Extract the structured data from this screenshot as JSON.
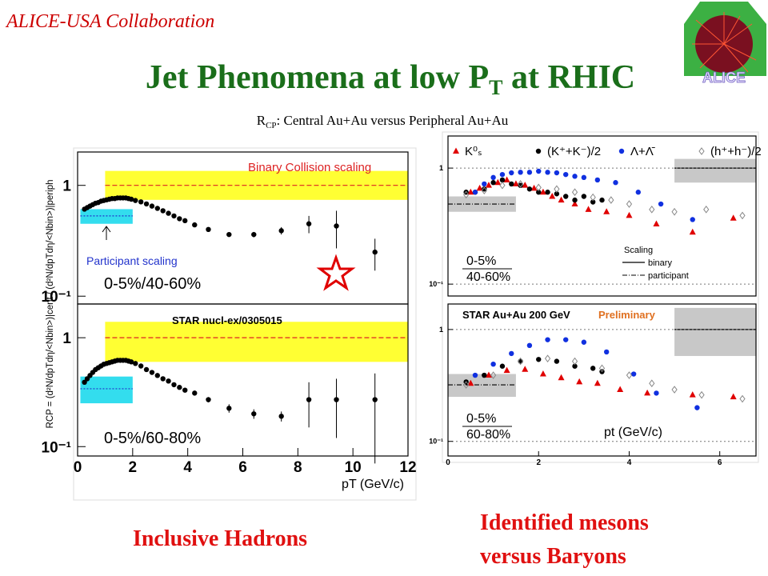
{
  "header": {
    "collab": "ALICE-USA Collaboration",
    "title_main": "Jet Phenomena at low P",
    "title_sub": "T",
    "title_tail": " at RHIC",
    "subtitle_main": "R",
    "subtitle_sub": "CP",
    "subtitle_tail": ": Central Au+Au versus Peripheral Au+Au",
    "logo": "ALICE"
  },
  "captions": {
    "left": "Inclusive Hadrons",
    "right_1": "Identified mesons",
    "right_2": "versus Baryons"
  },
  "chart_data": [
    {
      "type": "scatter",
      "log_y": true,
      "xlim": [
        0,
        12
      ],
      "ylim": [
        0.085,
        2
      ],
      "yticks": [
        1,
        {
          "value": 0.1,
          "label": "10⁻¹"
        }
      ],
      "series": [
        {
          "color": "#000000",
          "marker": "circle",
          "x": [
            0.25,
            0.35,
            0.45,
            0.55,
            0.65,
            0.75,
            0.85,
            0.95,
            1.05,
            1.15,
            1.25,
            1.35,
            1.45,
            1.55,
            1.65,
            1.75,
            1.85,
            1.95,
            2.1,
            2.3,
            2.5,
            2.7,
            2.9,
            3.1,
            3.3,
            3.5,
            3.7,
            3.9,
            4.25,
            4.75,
            5.5,
            6.4,
            7.4,
            8.4,
            9.4,
            10.8
          ],
          "values": [
            0.61,
            0.63,
            0.65,
            0.67,
            0.69,
            0.7,
            0.72,
            0.73,
            0.74,
            0.75,
            0.76,
            0.76,
            0.77,
            0.77,
            0.77,
            0.77,
            0.76,
            0.75,
            0.73,
            0.71,
            0.68,
            0.65,
            0.62,
            0.59,
            0.56,
            0.53,
            0.5,
            0.48,
            0.44,
            0.4,
            0.36,
            0.36,
            0.39,
            0.45,
            0.43,
            0.25
          ],
          "errors": [
            null,
            null,
            null,
            null,
            null,
            null,
            null,
            null,
            null,
            null,
            null,
            null,
            null,
            null,
            null,
            null,
            null,
            null,
            null,
            null,
            null,
            null,
            null,
            null,
            null,
            null,
            null,
            null,
            0.01,
            0.01,
            0.015,
            0.02,
            0.03,
            0.08,
            0.16,
            0.08
          ]
        }
      ],
      "bands": [
        {
          "x": [
            1,
            12
          ],
          "y": [
            0.74,
            1.35
          ],
          "color": "#ffff33",
          "line": 1,
          "line_color": "#dd2222",
          "line_style": "dashed"
        },
        {
          "x": [
            0.1,
            2
          ],
          "y": [
            0.45,
            0.61
          ],
          "color": "#33ddee",
          "line": 0.53,
          "line_color": "#2233cc",
          "line_style": "dotted"
        }
      ],
      "annotations": [
        "Binary Collision scaling",
        "Participant scaling",
        "0-5%/40-60%",
        "STAR"
      ]
    },
    {
      "type": "scatter",
      "log_y": true,
      "xlim": [
        0,
        12
      ],
      "ylim": [
        0.082,
        2.04
      ],
      "xticks": [
        0,
        2,
        4,
        6,
        8,
        10,
        12
      ],
      "xlabel": "pT (GeV/c)",
      "ylabel": "RCP = (d²N/dpTdη/<Nbin>)|cent / (d²N/dpTdη/<Nbin>)|periph",
      "yticks": [
        1,
        {
          "value": 0.1,
          "label": "10⁻¹"
        }
      ],
      "series": [
        {
          "color": "#000000",
          "marker": "circle",
          "x": [
            0.25,
            0.35,
            0.45,
            0.55,
            0.65,
            0.75,
            0.85,
            0.95,
            1.05,
            1.15,
            1.25,
            1.35,
            1.45,
            1.55,
            1.65,
            1.75,
            1.85,
            1.95,
            2.1,
            2.3,
            2.5,
            2.7,
            2.9,
            3.1,
            3.3,
            3.5,
            3.7,
            3.9,
            4.25,
            4.75,
            5.5,
            6.4,
            7.4,
            8.4,
            9.4,
            10.8
          ],
          "values": [
            0.39,
            0.42,
            0.45,
            0.48,
            0.51,
            0.53,
            0.55,
            0.57,
            0.58,
            0.59,
            0.6,
            0.61,
            0.62,
            0.62,
            0.62,
            0.62,
            0.61,
            0.6,
            0.58,
            0.55,
            0.51,
            0.48,
            0.45,
            0.42,
            0.4,
            0.37,
            0.35,
            0.33,
            0.31,
            0.27,
            0.225,
            0.2,
            0.19,
            0.27,
            0.27,
            0.27
          ],
          "errors": [
            null,
            null,
            null,
            null,
            null,
            null,
            null,
            null,
            null,
            null,
            null,
            null,
            null,
            null,
            null,
            null,
            null,
            null,
            null,
            null,
            null,
            null,
            null,
            null,
            null,
            null,
            null,
            null,
            0.01,
            0.015,
            0.02,
            0.02,
            0.02,
            0.12,
            0.15,
            0.2
          ]
        }
      ],
      "bands": [
        {
          "x": [
            1,
            12
          ],
          "y": [
            0.6,
            1.4
          ],
          "color": "#ffff33",
          "line": 1,
          "line_color": "#dd2222",
          "line_style": "dashed"
        },
        {
          "x": [
            0.1,
            2
          ],
          "y": [
            0.25,
            0.44
          ],
          "color": "#33ddee",
          "line": 0.34,
          "line_color": "#2233cc",
          "line_style": "dotted"
        }
      ],
      "annotations": [
        "STAR nucl-ex/0305015",
        "0-5%/60-80%"
      ]
    },
    {
      "type": "scatter",
      "log_y": true,
      "xlim": [
        0,
        6.8
      ],
      "ylim": [
        0.079,
        1.89
      ],
      "yticks": [
        1,
        {
          "value": 0.1,
          "label": "10⁻¹"
        }
      ],
      "ref_lines": [
        1,
        0.1
      ],
      "series": [
        {
          "name": "K⁰ₛ",
          "color": "#e00000",
          "marker": "triangle",
          "x": [
            0.5,
            0.7,
            0.9,
            1.1,
            1.3,
            1.5,
            1.7,
            1.9,
            2.1,
            2.3,
            2.5,
            2.8,
            3.1,
            3.5,
            4.0,
            4.6,
            5.4,
            6.3
          ],
          "values": [
            0.62,
            0.67,
            0.71,
            0.75,
            0.79,
            0.73,
            0.71,
            0.67,
            0.62,
            0.57,
            0.53,
            0.49,
            0.44,
            0.42,
            0.39,
            0.33,
            0.28,
            0.37
          ]
        },
        {
          "name": "(K⁺+K⁻)/2",
          "color": "#000000",
          "marker": "circle",
          "x": [
            0.4,
            0.6,
            0.8,
            1.0,
            1.2,
            1.4,
            1.6,
            1.8,
            2.0,
            2.2,
            2.4,
            2.6,
            2.8,
            3.0,
            3.2,
            3.4
          ],
          "values": [
            0.62,
            0.62,
            0.66,
            0.75,
            0.79,
            0.73,
            0.71,
            0.66,
            0.62,
            0.62,
            0.6,
            0.57,
            0.53,
            0.57,
            0.51,
            0.53
          ]
        },
        {
          "name": "Λ+Λ̄",
          "color": "#1030e0",
          "marker": "circle",
          "x": [
            0.6,
            0.8,
            1.0,
            1.2,
            1.4,
            1.6,
            1.8,
            2.0,
            2.2,
            2.4,
            2.6,
            2.8,
            3.0,
            3.3,
            3.7,
            4.2,
            4.7,
            5.4
          ],
          "values": [
            0.62,
            0.73,
            0.83,
            0.88,
            0.91,
            0.92,
            0.92,
            0.94,
            0.92,
            0.91,
            0.88,
            0.85,
            0.83,
            0.79,
            0.75,
            0.62,
            0.49,
            0.36
          ]
        },
        {
          "name": "(h⁺+h⁻)/2",
          "color": "#888888",
          "marker": "diamond",
          "x": [
            0.4,
            0.8,
            1.2,
            1.6,
            2.0,
            2.4,
            2.8,
            3.2,
            3.6,
            4.0,
            4.5,
            5.0,
            5.7,
            6.5
          ],
          "values": [
            0.59,
            0.64,
            0.71,
            0.73,
            0.68,
            0.66,
            0.62,
            0.56,
            0.53,
            0.49,
            0.44,
            0.42,
            0.44,
            0.39
          ]
        }
      ],
      "bands": [
        {
          "x": [
            5,
            6.8
          ],
          "y": [
            0.75,
            1.2
          ],
          "color": "#c8c8c8",
          "line": 1,
          "line_color": "#000000",
          "line_style": "solid"
        },
        {
          "x": [
            0,
            1.5
          ],
          "y": [
            0.42,
            0.57
          ],
          "color": "#c8c8c8",
          "line": 0.49,
          "line_color": "#000000",
          "line_style": "dashdot"
        }
      ],
      "annotations": [
        "0-5%",
        "40-60%",
        "Scaling",
        "binary",
        "participant"
      ]
    },
    {
      "type": "scatter",
      "log_y": true,
      "xlim": [
        0,
        6.8
      ],
      "ylim": [
        0.074,
        1.69
      ],
      "xticks": [
        0,
        2,
        4,
        6
      ],
      "yticks": [
        1,
        {
          "value": 0.1,
          "label": "10⁻¹"
        }
      ],
      "ref_lines": [
        1,
        0.1
      ],
      "series": [
        {
          "color": "#e00000",
          "marker": "triangle",
          "x": [
            0.5,
            0.9,
            1.3,
            1.7,
            2.1,
            2.5,
            2.9,
            3.3,
            3.8,
            4.4,
            5.4,
            6.3
          ],
          "values": [
            0.33,
            0.39,
            0.43,
            0.44,
            0.4,
            0.37,
            0.34,
            0.33,
            0.29,
            0.27,
            0.26,
            0.25
          ]
        },
        {
          "color": "#000000",
          "marker": "circle",
          "x": [
            0.4,
            0.8,
            1.2,
            1.6,
            2.0,
            2.4,
            2.8,
            3.2,
            3.4
          ],
          "values": [
            0.34,
            0.39,
            0.47,
            0.52,
            0.54,
            0.52,
            0.47,
            0.45,
            0.42
          ]
        },
        {
          "color": "#1030e0",
          "marker": "circle",
          "x": [
            0.6,
            1.0,
            1.4,
            1.8,
            2.2,
            2.6,
            3.0,
            3.5,
            4.1,
            4.6,
            5.5
          ],
          "values": [
            0.39,
            0.49,
            0.61,
            0.72,
            0.81,
            0.81,
            0.77,
            0.63,
            0.4,
            0.27,
            0.2
          ]
        },
        {
          "color": "#888888",
          "marker": "diamond",
          "x": [
            0.4,
            1.0,
            1.6,
            2.2,
            2.8,
            3.4,
            4.0,
            4.5,
            5.0,
            5.6,
            6.5
          ],
          "values": [
            0.32,
            0.39,
            0.52,
            0.55,
            0.52,
            0.45,
            0.39,
            0.33,
            0.29,
            0.26,
            0.24
          ]
        }
      ],
      "bands": [
        {
          "x": [
            5,
            6.8
          ],
          "y": [
            0.58,
            1.56
          ],
          "color": "#c8c8c8",
          "line": 1,
          "line_color": "#000000",
          "line_style": "solid"
        },
        {
          "x": [
            0,
            1.5
          ],
          "y": [
            0.25,
            0.4
          ],
          "color": "#c8c8c8",
          "line": 0.32,
          "line_color": "#000000",
          "line_style": "dashdot"
        }
      ],
      "annotations": [
        "STAR Au+Au 200 GeV",
        "Preliminary",
        "pt (GeV/c)",
        "0-5%",
        "60-80%"
      ]
    }
  ]
}
